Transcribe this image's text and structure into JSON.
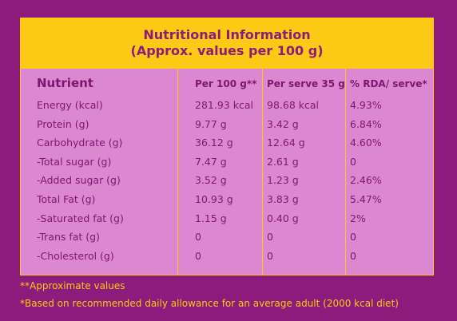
{
  "header": {
    "title": [
      "Nutritional Information",
      "(Approx. values per 100 g)"
    ]
  },
  "table": {
    "columns": [
      "Nutrient",
      "Per 100 g**",
      "Per serve 35 g",
      "% RDA/ serve*"
    ],
    "rows": [
      [
        "Energy (kcal)",
        "281.93 kcal",
        "98.68 kcal",
        "4.93%"
      ],
      [
        "Protein (g)",
        "9.77 g",
        "3.42 g",
        "6.84%"
      ],
      [
        "Carbohydrate (g)",
        "36.12 g",
        "12.64 g",
        "4.60%"
      ],
      [
        "-Total sugar (g)",
        "7.47 g",
        "2.61 g",
        "0"
      ],
      [
        "-Added sugar (g)",
        "3.52 g",
        "1.23 g",
        "2.46%"
      ],
      [
        "Total Fat (g)",
        "10.93 g",
        "3.83 g",
        "5.47%"
      ],
      [
        "-Saturated fat (g)",
        "1.15 g",
        "0.40 g",
        "2%"
      ],
      [
        "-Trans fat (g)",
        "0",
        "0",
        "0"
      ],
      [
        "-Cholesterol (g)",
        "0",
        "0",
        "0"
      ]
    ]
  },
  "footnotes": [
    "**Approximate values",
    "*Based on recommended daily allowance for an average adult (2000 kcal diet)"
  ]
}
